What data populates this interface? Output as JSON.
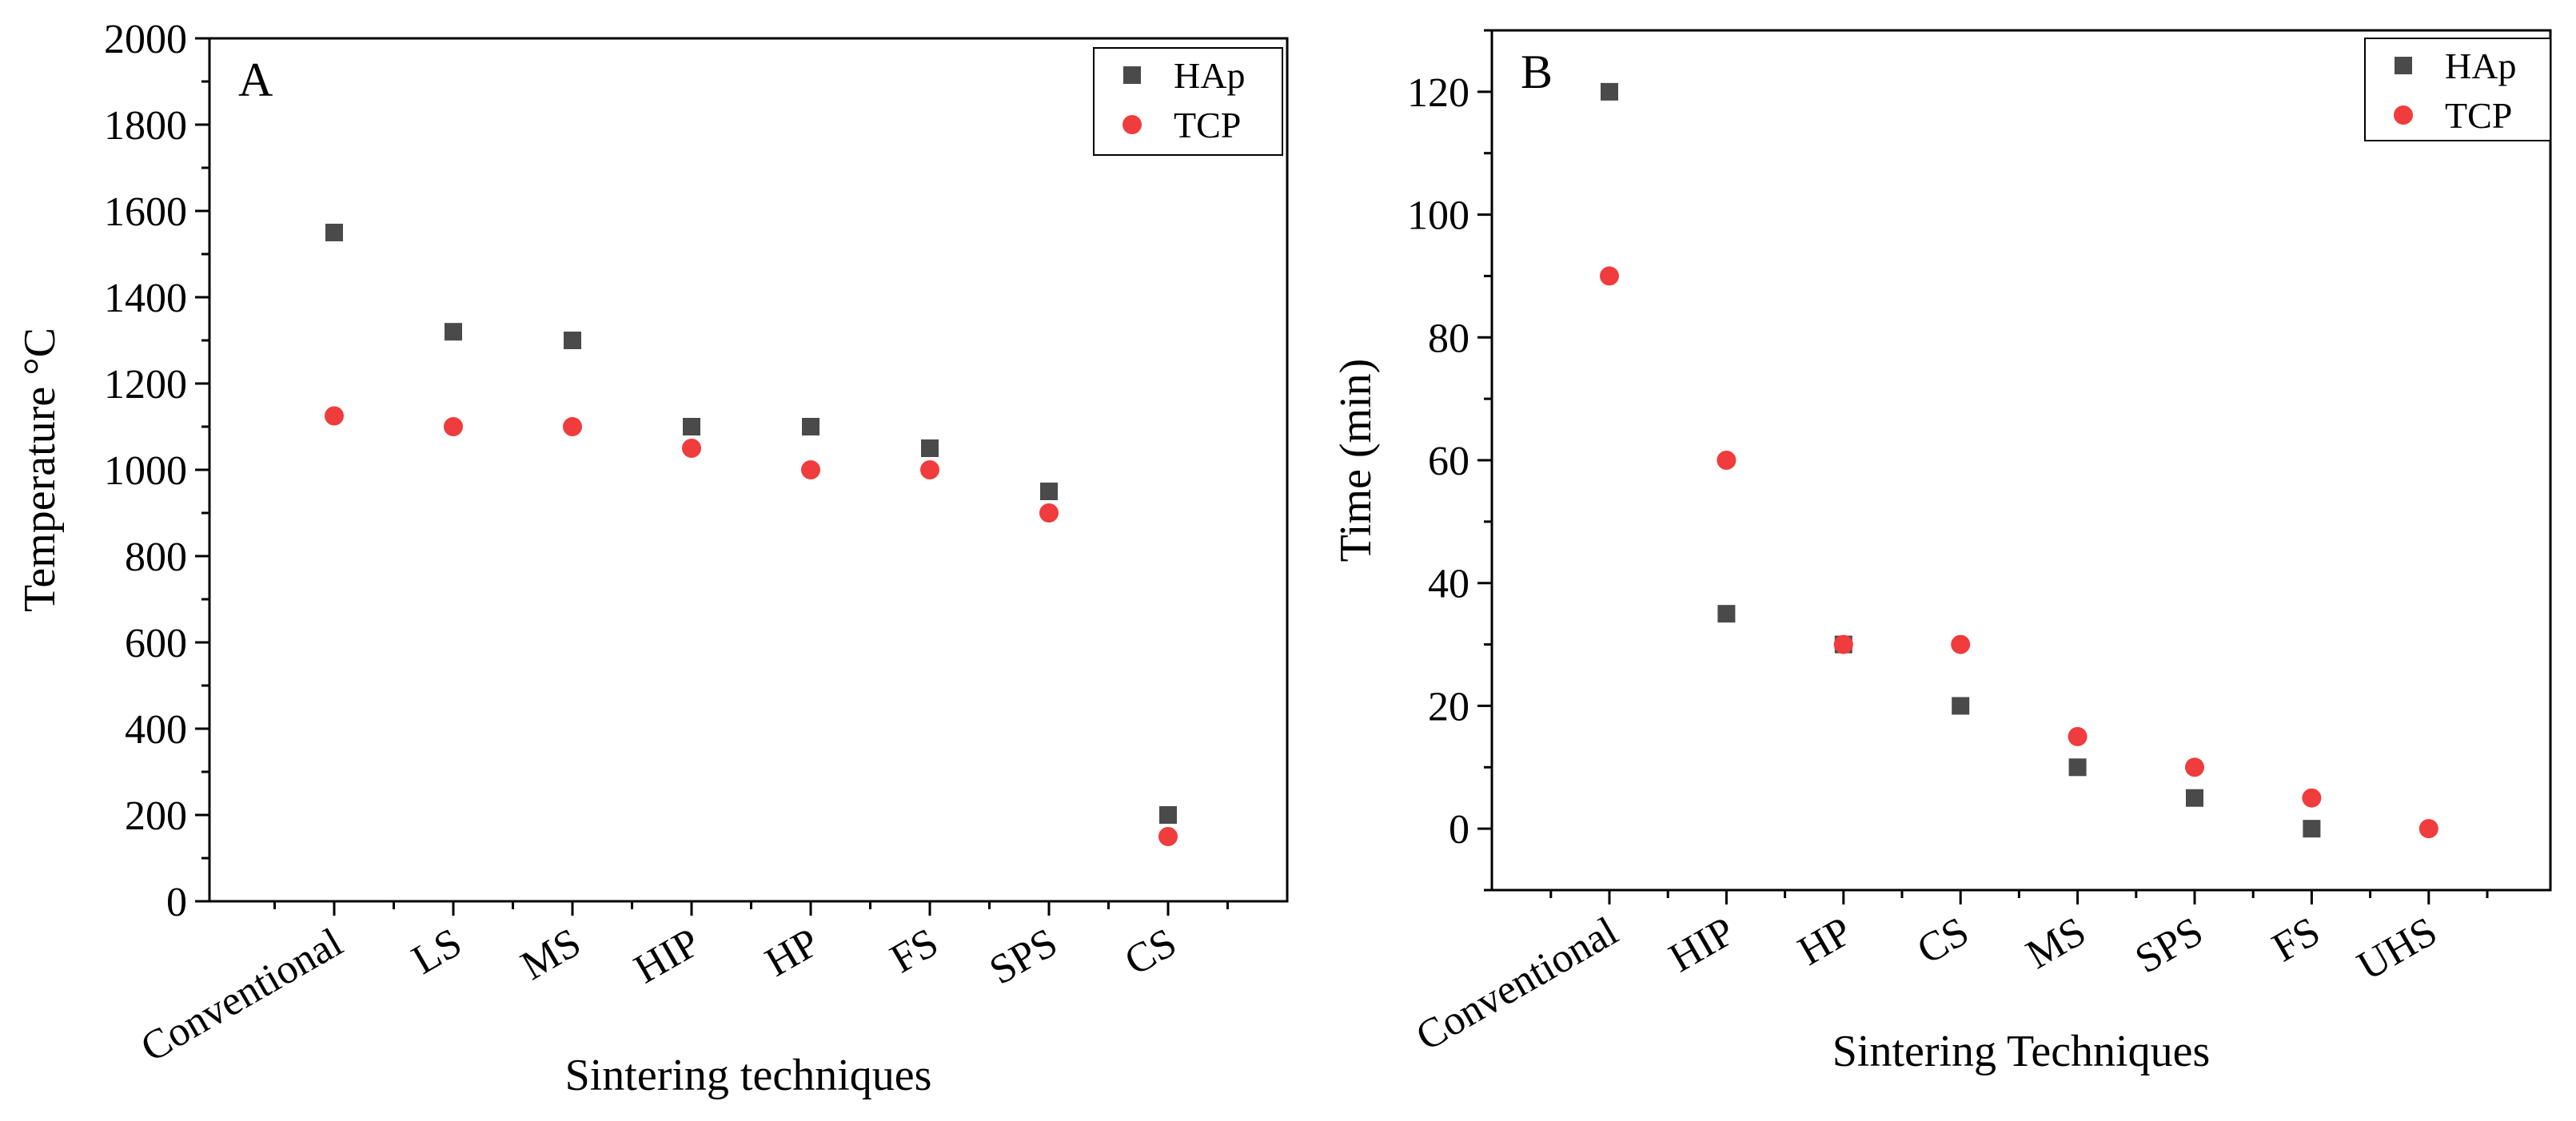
{
  "chart_data": [
    {
      "type": "scatter",
      "panel_label": "A",
      "categories": [
        "Conventional",
        "LS",
        "MS",
        "HIP",
        "HP",
        "FS",
        "SPS",
        "CS"
      ],
      "series": [
        {
          "name": "HAp",
          "marker": "square",
          "color": "#4a4a4a",
          "values": [
            1550,
            1320,
            1300,
            1100,
            1100,
            1050,
            950,
            200
          ]
        },
        {
          "name": "TCP",
          "marker": "circle",
          "color": "#f03c3c",
          "values": [
            1125,
            1100,
            1100,
            1050,
            1000,
            1000,
            900,
            150
          ]
        }
      ],
      "xlabel": "Sintering techniques",
      "ylabel": "Temperature °C",
      "ylim": [
        0,
        2000
      ],
      "yticks": [
        0,
        200,
        400,
        600,
        800,
        1000,
        1200,
        1400,
        1600,
        1800,
        2000
      ],
      "grid": false,
      "legend_position": "top-right"
    },
    {
      "type": "scatter",
      "panel_label": "B",
      "categories": [
        "Conventional",
        "HIP",
        "HP",
        "CS",
        "MS",
        "SPS",
        "FS",
        "UHS"
      ],
      "series": [
        {
          "name": "HAp",
          "marker": "square",
          "color": "#4a4a4a",
          "values": [
            120,
            35,
            30,
            20,
            10,
            5,
            0,
            null
          ]
        },
        {
          "name": "TCP",
          "marker": "circle",
          "color": "#f03c3c",
          "values": [
            90,
            60,
            30,
            30,
            15,
            10,
            5,
            0
          ]
        }
      ],
      "xlabel": "Sintering Techniques",
      "ylabel": "Time (min)",
      "ylim": [
        -10,
        130
      ],
      "yticks": [
        0,
        20,
        40,
        60,
        80,
        100,
        120
      ],
      "grid": false,
      "legend_position": "top-right"
    }
  ]
}
